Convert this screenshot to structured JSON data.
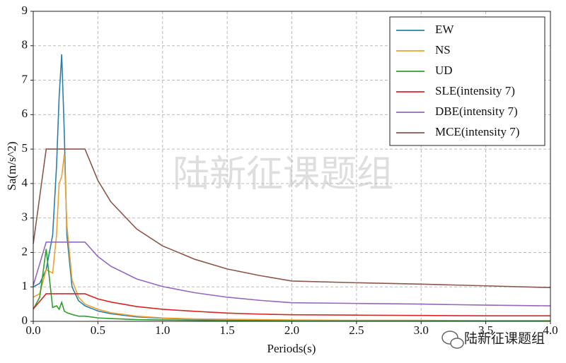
{
  "chart_data": {
    "type": "line",
    "x_label": "Periods(s)",
    "y_label": "Sa(m/s^2)",
    "annotations": [
      "陆新征课题组",
      "陆新征课题组"
    ],
    "x": [
      0,
      0.05,
      0.1,
      0.15,
      0.18,
      0.2,
      0.22,
      0.24,
      0.26,
      0.3,
      0.35,
      0.4,
      0.5,
      0.6,
      0.8,
      1.0,
      1.25,
      1.5,
      1.75,
      2.0,
      2.5,
      3.0,
      3.5,
      4.0
    ],
    "series": [
      {
        "name": "EW",
        "color": "#2a7fa8",
        "values": [
          1.0,
          1.1,
          1.5,
          2.5,
          4.5,
          6.5,
          7.75,
          5.5,
          2.5,
          1.0,
          0.6,
          0.45,
          0.3,
          0.22,
          0.13,
          0.09,
          0.06,
          0.05,
          0.04,
          0.03,
          0.02,
          0.02,
          0.01,
          0.01
        ]
      },
      {
        "name": "NS",
        "color": "#f0a030",
        "values": [
          0.7,
          0.8,
          1.5,
          1.4,
          2.5,
          4.0,
          4.2,
          4.85,
          2.8,
          1.2,
          0.7,
          0.5,
          0.35,
          0.25,
          0.15,
          0.1,
          0.07,
          0.06,
          0.05,
          0.04,
          0.03,
          0.03,
          0.02,
          0.02
        ]
      },
      {
        "name": "UD",
        "color": "#2ca02c",
        "values": [
          0.35,
          0.7,
          2.1,
          0.4,
          0.45,
          0.35,
          0.55,
          0.3,
          0.25,
          0.2,
          0.15,
          0.15,
          0.1,
          0.08,
          0.05,
          0.04,
          0.03,
          0.02,
          0.02,
          0.01,
          0.01,
          0.01,
          0.01,
          0.01
        ]
      },
      {
        "name": "SLE(intensity 7)",
        "color": "#d62728",
        "values": [
          0.36,
          0.58,
          0.8,
          0.8,
          0.8,
          0.8,
          0.8,
          0.8,
          0.8,
          0.8,
          0.8,
          0.8,
          0.65,
          0.56,
          0.43,
          0.35,
          0.29,
          0.24,
          0.21,
          0.19,
          0.18,
          0.17,
          0.16,
          0.16
        ]
      },
      {
        "name": "DBE(intensity 7)",
        "color": "#9467bd",
        "values": [
          1.04,
          1.67,
          2.3,
          2.3,
          2.3,
          2.3,
          2.3,
          2.3,
          2.3,
          2.3,
          2.3,
          2.3,
          1.88,
          1.6,
          1.23,
          1.01,
          0.83,
          0.7,
          0.61,
          0.54,
          0.52,
          0.5,
          0.47,
          0.45
        ]
      },
      {
        "name": "MCE(intensity 7)",
        "color": "#8c564b",
        "values": [
          2.25,
          3.62,
          5.0,
          5.0,
          5.0,
          5.0,
          5.0,
          5.0,
          5.0,
          5.0,
          5.0,
          5.0,
          4.09,
          3.47,
          2.68,
          2.19,
          1.8,
          1.52,
          1.33,
          1.17,
          1.12,
          1.08,
          1.03,
          0.98
        ]
      }
    ],
    "xlim": [
      0,
      4
    ],
    "xticks": [
      {
        "value": 0,
        "label": "0.0"
      },
      0.5,
      {
        "value": 1,
        "label": "1.0"
      },
      1.5,
      {
        "value": 2,
        "label": "2.0"
      },
      2.5,
      {
        "value": 3,
        "label": "3.0"
      },
      3.5,
      {
        "value": 4,
        "label": "4.0"
      }
    ],
    "ylim": [
      0,
      9
    ],
    "yticks": [
      0,
      1,
      2,
      3,
      4,
      5,
      6,
      7,
      8,
      9
    ],
    "grid": true,
    "legend": "upper right"
  }
}
